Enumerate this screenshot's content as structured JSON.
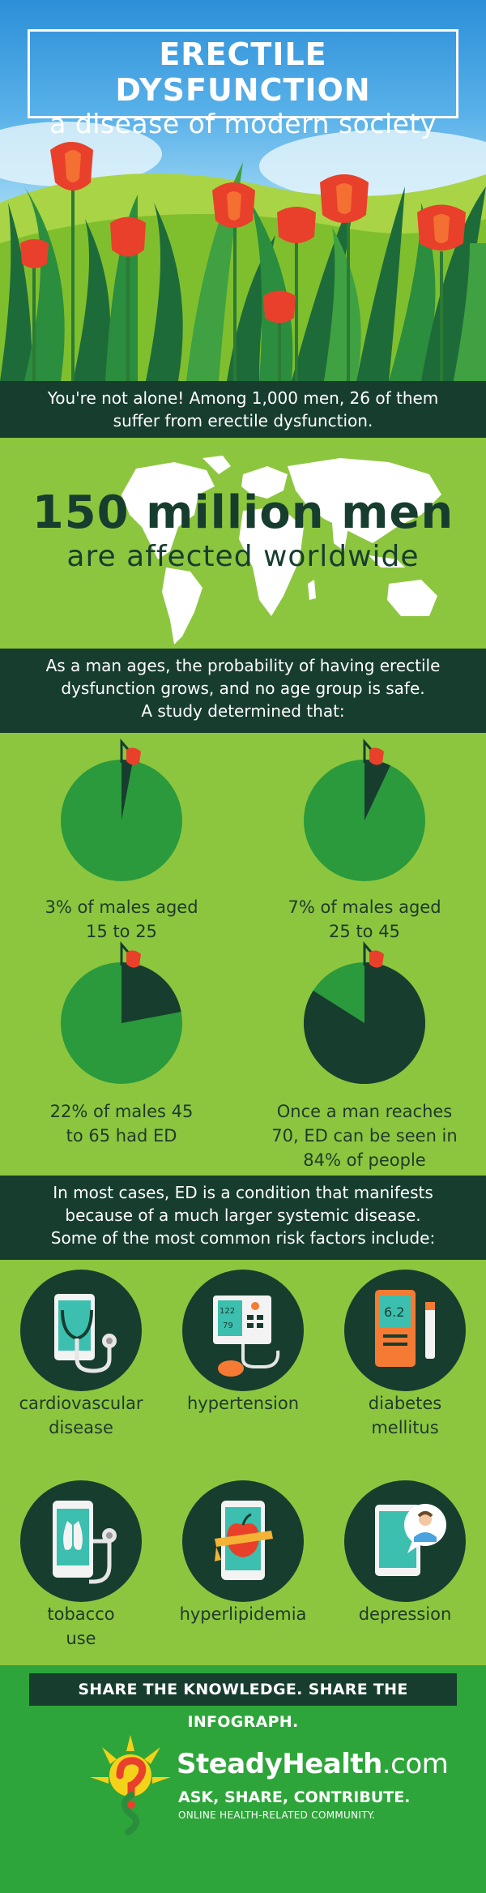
{
  "header": {
    "title": "ERECTILE DYSFUNCTION",
    "subtitle": "a disease of modern society"
  },
  "intro": {
    "line1": "You're not alone! Among 1,000 men, 26 of them",
    "line2": "suffer from erectile dysfunction."
  },
  "worldwide": {
    "number": "150 million men",
    "text": "are affected worldwide"
  },
  "age_intro": {
    "line1": "As a man ages, the probability of having erectile",
    "line2": "dysfunction grows, and no age group is safe.",
    "line3": "A study determined that:"
  },
  "stats": [
    {
      "percent": 3,
      "line1": "3% of males aged",
      "line2": "15 to 25"
    },
    {
      "percent": 7,
      "line1": "7% of males aged",
      "line2": "25 to 45"
    },
    {
      "percent": 22,
      "line1": "22% of males 45",
      "line2": "to 65 had ED"
    },
    {
      "percent": 84,
      "line1": "Once a man reaches",
      "line2": "70, ED can be seen in",
      "line3": "84% of people"
    }
  ],
  "risk_intro": {
    "line1": "In most cases, ED is a condition that manifests",
    "line2": "because of a much larger systemic disease.",
    "line3": "Some of the most common risk factors include:"
  },
  "risks": [
    {
      "icon": "tablet-stethoscope-icon",
      "line1": "cardiovascular",
      "line2": "disease"
    },
    {
      "icon": "blood-pressure-monitor-icon",
      "line1": "hypertension",
      "line2": "",
      "readout_top": "122",
      "readout_bottom": "79"
    },
    {
      "icon": "glucose-meter-icon",
      "line1": "diabetes",
      "line2": "mellitus",
      "readout": "6.2"
    },
    {
      "icon": "phone-lungs-icon",
      "line1": "tobacco",
      "line2": "use"
    },
    {
      "icon": "apple-measuring-tape-icon",
      "line1": "hyperlipidemia",
      "line2": ""
    },
    {
      "icon": "tablet-doctor-icon",
      "line1": "depression",
      "line2": ""
    }
  ],
  "footer": {
    "share": "SHARE THE KNOWLEDGE. SHARE THE INFOGRAPH.",
    "brand_name": "SteadyHealth",
    "brand_domain": ".com",
    "tagline": "ASK, SHARE, CONTRIBUTE.",
    "tagline_sub": "ONLINE HEALTH-RELATED COMMUNITY."
  },
  "colors": {
    "dark_green": "#173d2f",
    "lime_green": "#8cc63f",
    "pie_green": "#2a9a3c",
    "brand_green": "#2ea53a",
    "tulip_red": "#e8402a"
  }
}
